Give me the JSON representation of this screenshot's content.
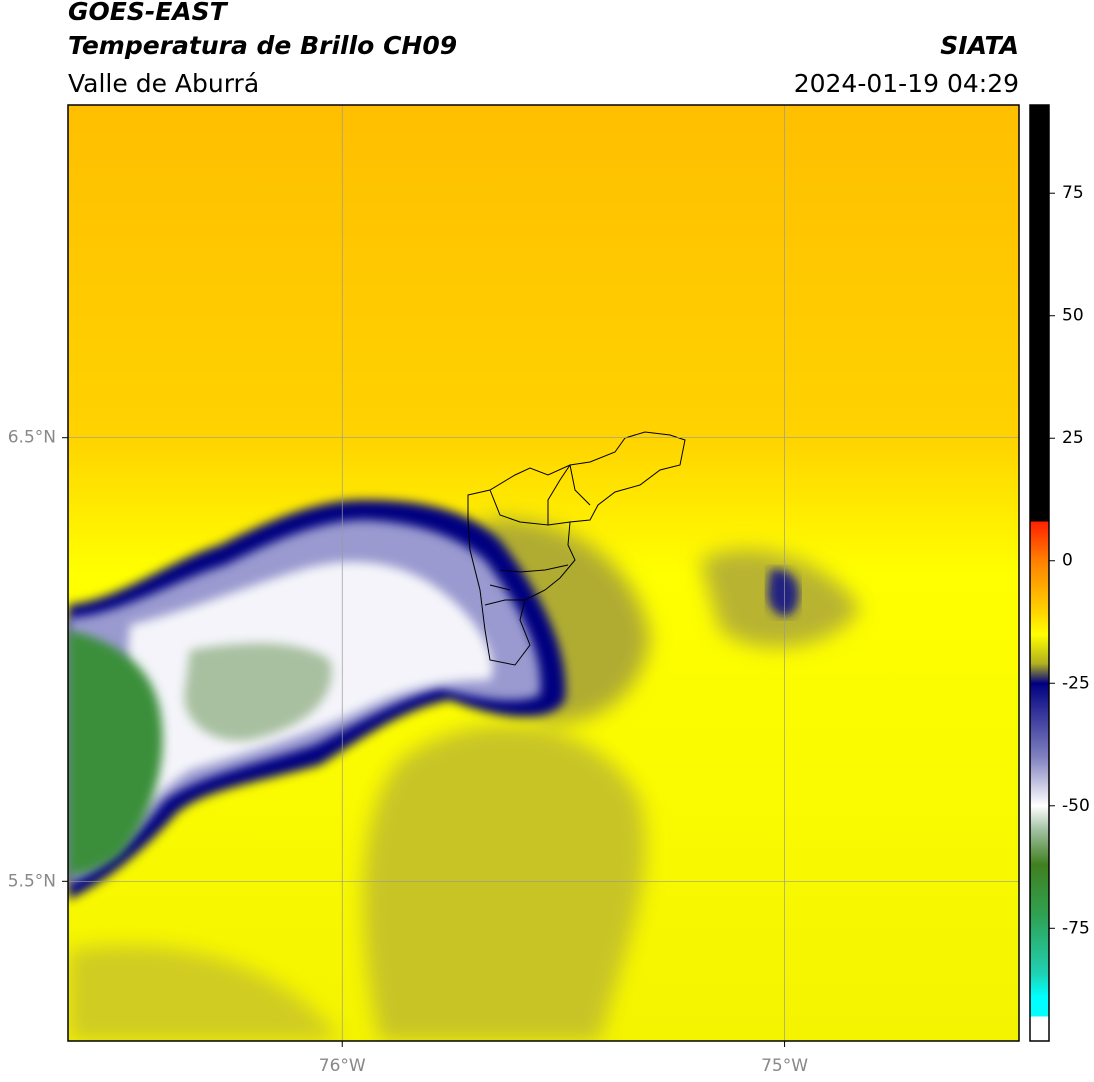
{
  "header": {
    "title": "GOES-EAST",
    "product": "Temperatura de Brillo CH09",
    "region": "Valle de Aburrá",
    "source": "SIATA",
    "datetime": "2024-01-19 04:29"
  },
  "map": {
    "lonlim": [
      -76.62,
      -74.47
    ],
    "latlim": [
      5.14,
      7.25
    ],
    "lonticks": [
      {
        "value": -76,
        "label": "76°W"
      },
      {
        "value": -75,
        "label": "75°W"
      }
    ],
    "latticks": [
      {
        "value": 6.5,
        "label": "6.5°N"
      },
      {
        "value": 5.5,
        "label": "5.5°N"
      }
    ],
    "grid": true
  },
  "colorbar": {
    "lim": [
      -98,
      93
    ],
    "ticks": [
      75,
      50,
      25,
      0,
      -25,
      -50,
      -75
    ],
    "colorscale": [
      [
        93,
        "#000000"
      ],
      [
        8,
        "#000000"
      ],
      [
        8,
        "#ff2000"
      ],
      [
        0,
        "#ff8000"
      ],
      [
        -10,
        "#ffd000"
      ],
      [
        -15,
        "#ffff00"
      ],
      [
        -21,
        "#b0b020"
      ],
      [
        -25,
        "#000080"
      ],
      [
        -40,
        "#8080c0"
      ],
      [
        -50,
        "#ffffff"
      ],
      [
        -55,
        "#a0c0a0"
      ],
      [
        -62,
        "#408020"
      ],
      [
        -72,
        "#30a050"
      ],
      [
        -84,
        "#20d0b0"
      ],
      [
        -89,
        "#00ffff"
      ],
      [
        -93,
        "#00ffff"
      ],
      [
        -93,
        "#ffffff"
      ],
      [
        -98,
        "#ffffff"
      ]
    ]
  }
}
